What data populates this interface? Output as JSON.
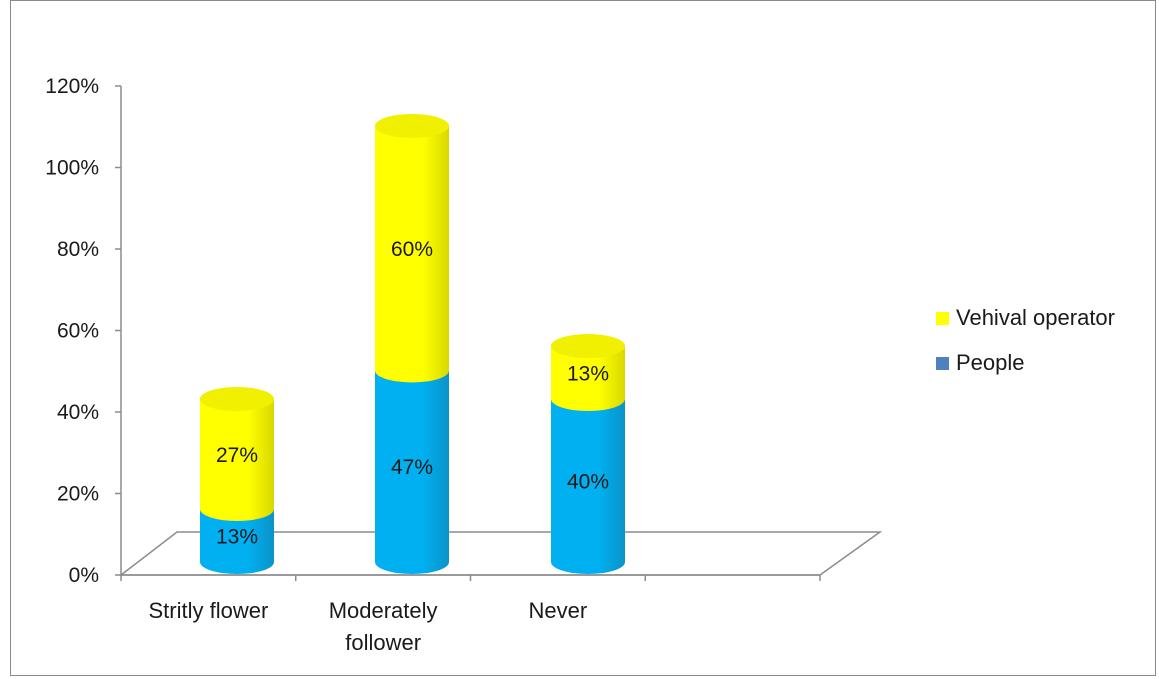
{
  "chart_data": {
    "type": "bar",
    "stacked": true,
    "style": "3d-cylinder",
    "title": "",
    "xlabel": "",
    "ylabel": "",
    "categories": [
      "Stritly flower",
      "Moderately follower",
      "Never"
    ],
    "category_lines": [
      [
        "Stritly flower"
      ],
      [
        "Moderately",
        "follower"
      ],
      [
        "Never"
      ]
    ],
    "series": [
      {
        "name": "People",
        "values": [
          13,
          47,
          40
        ],
        "labels": [
          "13%",
          "47%",
          "40%"
        ],
        "color": "#00b0f0",
        "dark": "#0a93c8",
        "top": "#39c6f7"
      },
      {
        "name": "Vehival operator",
        "values": [
          27,
          60,
          13
        ],
        "labels": [
          "27%",
          "60%",
          "13%"
        ],
        "color": "#ffff00",
        "dark": "#d8d800",
        "top": "#f0f000"
      }
    ],
    "ylim": [
      0,
      120
    ],
    "yticks": [
      0,
      20,
      40,
      60,
      80,
      100,
      120
    ],
    "ytick_labels": [
      "0%",
      "20%",
      "40%",
      "60%",
      "80%",
      "100%",
      "120%"
    ],
    "grid": false,
    "legend": {
      "placement": "right",
      "entries": [
        {
          "label": "Vehival operator",
          "color": "#ffff00"
        },
        {
          "label": "People",
          "color": "#4f81bd"
        }
      ]
    }
  }
}
